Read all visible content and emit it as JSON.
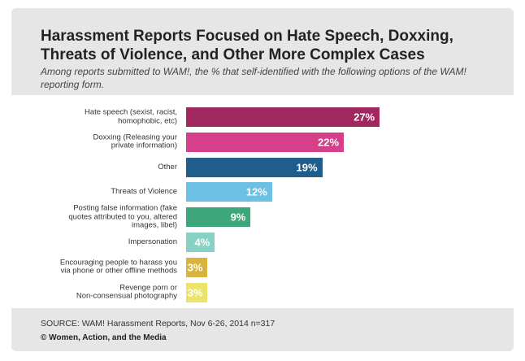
{
  "chart_data": {
    "type": "hbar",
    "title": "Harassment Reports Focused on Hate Speech, Doxxing, Threats of Violence, and Other More Complex Cases",
    "subtitle": "Among reports submitted to WAM!, the % that self-identified with the following options of the WAM! reporting form.",
    "categories": [
      "Hate speech (sexist, racist,\nhomophobic, etc)",
      "Doxxing (Releasing your\nprivate information)",
      "Other",
      "Threats of Violence",
      "Posting false information (fake\nquotes attributed to you, altered\nimages, libel)",
      "Impersonation",
      "Encouraging people to harass you\nvia phone or other offline methods",
      "Revenge porn or\nNon-consensual photography"
    ],
    "values": [
      27,
      22,
      19,
      12,
      9,
      4,
      3,
      3
    ],
    "value_labels": [
      "27%",
      "22%",
      "19%",
      "12%",
      "9%",
      "4%",
      "3%",
      "3%"
    ],
    "colors": [
      "#a1275f",
      "#d6408a",
      "#1f5e8c",
      "#6cc0e3",
      "#3ea67b",
      "#86d1c4",
      "#d8b43c",
      "#ece46a"
    ],
    "source": "SOURCE: WAM! Harassment Reports, Nov 6-26, 2014 n=317",
    "credit": "© Women, Action, and the Media"
  }
}
